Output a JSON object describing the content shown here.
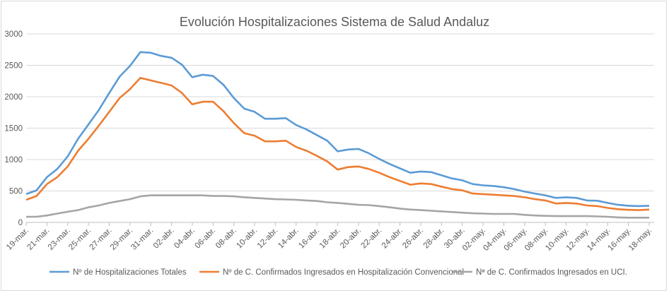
{
  "chart_data": {
    "type": "line",
    "title": "Evolución Hospitalizaciones Sistema de Salud Andaluz",
    "xlabel": "",
    "ylabel": "",
    "ylim": [
      0,
      3000
    ],
    "yticks": [
      0,
      500,
      1000,
      1500,
      2000,
      2500,
      3000
    ],
    "grid": true,
    "legend_position": "bottom",
    "x": [
      "19-mar.",
      "20-mar.",
      "21-mar.",
      "22-mar.",
      "23-mar.",
      "24-mar.",
      "25-mar.",
      "26-mar.",
      "27-mar.",
      "28-mar.",
      "29-mar.",
      "30-mar.",
      "31-mar.",
      "01-abr.",
      "02-abr.",
      "03-abr.",
      "04-abr.",
      "05-abr.",
      "06-abr.",
      "07-abr.",
      "08-abr.",
      "09-abr.",
      "10-abr.",
      "11-abr.",
      "12-abr.",
      "13-abr.",
      "14-abr.",
      "15-abr.",
      "16-abr.",
      "17-abr.",
      "18-abr.",
      "19-abr.",
      "20-abr.",
      "21-abr.",
      "22-abr.",
      "23-abr.",
      "24-abr.",
      "25-abr.",
      "26-abr.",
      "27-abr.",
      "28-abr.",
      "29-abr.",
      "30-abr.",
      "01-may.",
      "02-may.",
      "03-may.",
      "04-may.",
      "05-may.",
      "06-may.",
      "07-may.",
      "08-may.",
      "09-may.",
      "10-may.",
      "11-may.",
      "12-may.",
      "13-may.",
      "14-may.",
      "15-may.",
      "16-may.",
      "17-may.",
      "18-may."
    ],
    "series": [
      {
        "name": "Nº de Hospitalizaciones Totales",
        "color": "#5b9bd5",
        "values": [
          450,
          510,
          720,
          850,
          1050,
          1330,
          1560,
          1790,
          2060,
          2320,
          2490,
          2710,
          2700,
          2650,
          2620,
          2510,
          2310,
          2350,
          2330,
          2190,
          1980,
          1810,
          1760,
          1650,
          1650,
          1660,
          1550,
          1480,
          1390,
          1300,
          1130,
          1160,
          1170,
          1100,
          1010,
          930,
          860,
          790,
          810,
          800,
          750,
          700,
          670,
          610,
          590,
          580,
          560,
          530,
          490,
          460,
          430,
          390,
          400,
          390,
          350,
          345,
          310,
          280,
          265,
          260,
          265
        ]
      },
      {
        "name": "Nº de C. Confirmados Ingresados en Hospitalización Convencional",
        "color": "#ed7d31",
        "values": [
          360,
          420,
          610,
          720,
          890,
          1140,
          1330,
          1540,
          1760,
          1980,
          2120,
          2300,
          2260,
          2220,
          2180,
          2060,
          1880,
          1920,
          1920,
          1770,
          1580,
          1420,
          1380,
          1290,
          1290,
          1300,
          1200,
          1140,
          1060,
          970,
          840,
          880,
          890,
          850,
          790,
          720,
          660,
          600,
          620,
          610,
          570,
          530,
          510,
          460,
          450,
          440,
          430,
          420,
          400,
          370,
          350,
          300,
          310,
          300,
          270,
          260,
          230,
          210,
          200,
          195,
          205
        ]
      },
      {
        "name": "Nª de C. Confirmados Ingresados en UCI.",
        "color": "#a5a5a5",
        "values": [
          90,
          90,
          110,
          140,
          170,
          195,
          240,
          270,
          310,
          340,
          370,
          415,
          430,
          430,
          430,
          430,
          430,
          430,
          420,
          420,
          415,
          400,
          390,
          380,
          370,
          365,
          360,
          350,
          340,
          320,
          310,
          295,
          280,
          275,
          260,
          240,
          220,
          205,
          195,
          185,
          175,
          165,
          155,
          145,
          140,
          135,
          135,
          135,
          120,
          110,
          105,
          100,
          100,
          100,
          100,
          95,
          90,
          80,
          75,
          75,
          75
        ]
      }
    ]
  }
}
